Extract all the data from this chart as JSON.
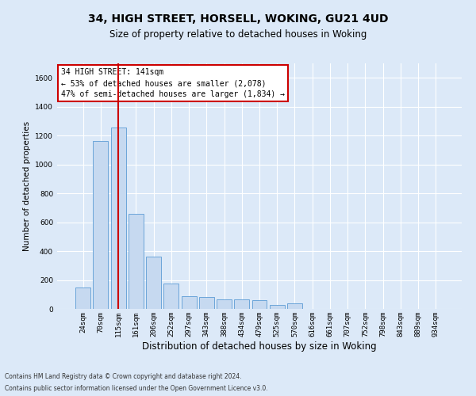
{
  "title": "34, HIGH STREET, HORSELL, WOKING, GU21 4UD",
  "subtitle": "Size of property relative to detached houses in Woking",
  "xlabel": "Distribution of detached houses by size in Woking",
  "ylabel": "Number of detached properties",
  "categories": [
    "24sqm",
    "70sqm",
    "115sqm",
    "161sqm",
    "206sqm",
    "252sqm",
    "297sqm",
    "343sqm",
    "388sqm",
    "434sqm",
    "479sqm",
    "525sqm",
    "570sqm",
    "616sqm",
    "661sqm",
    "707sqm",
    "752sqm",
    "798sqm",
    "843sqm",
    "889sqm",
    "934sqm"
  ],
  "values": [
    150,
    1160,
    1255,
    660,
    360,
    175,
    90,
    85,
    65,
    65,
    60,
    25,
    40,
    0,
    0,
    0,
    0,
    0,
    0,
    0,
    0
  ],
  "bar_color": "#c6d9f0",
  "bar_edge_color": "#5b9bd5",
  "ylim_max": 1700,
  "yticks": [
    0,
    200,
    400,
    600,
    800,
    1000,
    1200,
    1400,
    1600
  ],
  "property_line_x": 2.0,
  "annotation_title": "34 HIGH STREET: 141sqm",
  "annotation_line1": "← 53% of detached houses are smaller (2,078)",
  "annotation_line2": "47% of semi-detached houses are larger (1,834) →",
  "footer_line1": "Contains HM Land Registry data © Crown copyright and database right 2024.",
  "footer_line2": "Contains public sector information licensed under the Open Government Licence v3.0.",
  "bg_color": "#dce9f8",
  "grid_color": "#ffffff",
  "title_fontsize": 10,
  "subtitle_fontsize": 8.5,
  "ylabel_fontsize": 7.5,
  "xlabel_fontsize": 8.5,
  "tick_fontsize": 6.5,
  "annot_fontsize": 7,
  "footer_fontsize": 5.5
}
